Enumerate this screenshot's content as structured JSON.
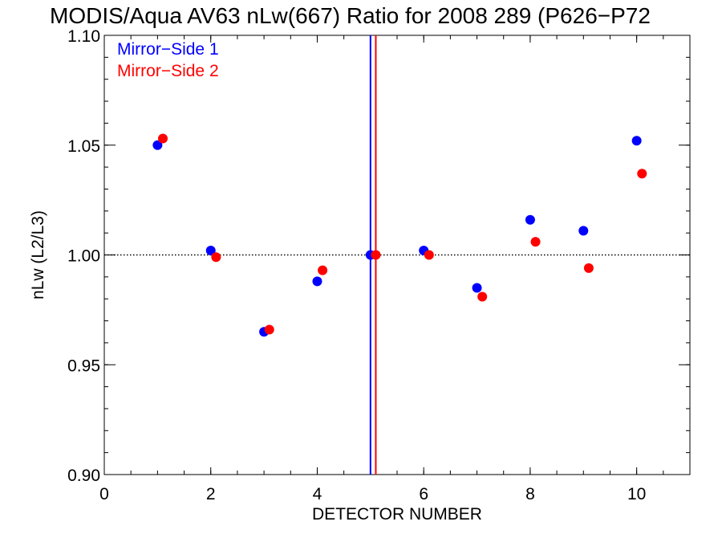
{
  "chart_data": {
    "type": "scatter",
    "title": "MODIS/Aqua AV63 nLw(667) Ratio for 2008 289 (P626−P72",
    "xlabel": "DETECTOR NUMBER",
    "ylabel": "nLw (L2/L3)",
    "xlim": [
      0,
      11
    ],
    "ylim": [
      0.9,
      1.1
    ],
    "x_ticks": [
      0,
      2,
      4,
      6,
      8,
      10
    ],
    "x_tick_labels": [
      "0",
      "2",
      "4",
      "6",
      "8",
      "10"
    ],
    "x_minor_step": 0.5,
    "y_ticks": [
      0.9,
      0.95,
      1.0,
      1.05,
      1.1
    ],
    "y_tick_labels": [
      "0.90",
      "0.95",
      "1.00",
      "1.05",
      "1.10"
    ],
    "y_minor_step": 0.01,
    "reference_line": {
      "y": 1.0,
      "style": "dotted",
      "color": "#000000"
    },
    "legend_position": "top-left",
    "series": [
      {
        "name": "Mirror−Side 1",
        "color": "#0000ff",
        "x": [
          1,
          2,
          3,
          4,
          5,
          6,
          7,
          8,
          9,
          10
        ],
        "y": [
          1.05,
          1.002,
          0.965,
          0.988,
          1.0,
          1.002,
          0.985,
          1.016,
          1.011,
          1.052
        ],
        "vertical_line_x": 5.0
      },
      {
        "name": "Mirror−Side 2",
        "color": "#ff0000",
        "x": [
          1.1,
          2.1,
          3.1,
          4.1,
          5.1,
          6.1,
          7.1,
          8.1,
          9.1,
          10.1
        ],
        "y": [
          1.053,
          0.999,
          0.966,
          0.993,
          1.0,
          1.0,
          0.981,
          1.006,
          0.994,
          1.037
        ],
        "vertical_line_x": 5.1
      }
    ]
  }
}
